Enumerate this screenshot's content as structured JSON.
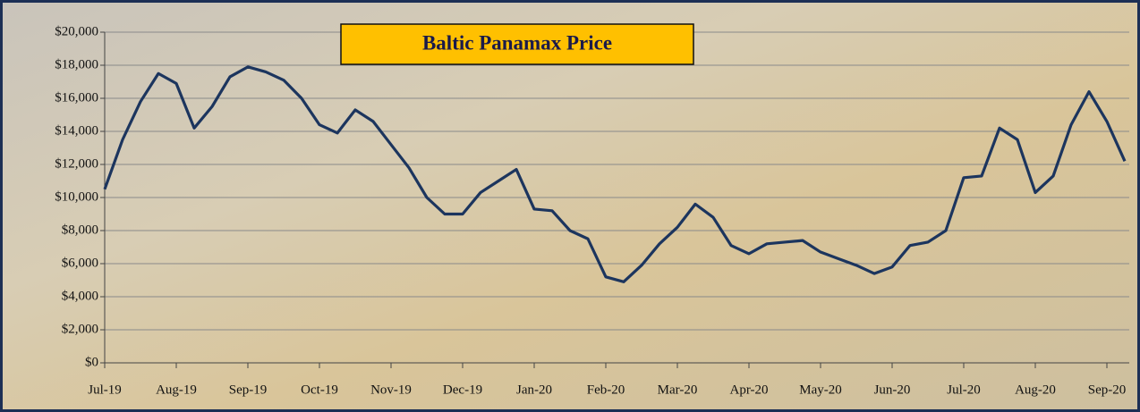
{
  "chart_data": {
    "type": "line",
    "title": "Baltic Panamax Price",
    "categories": [
      "Jul-19",
      null,
      null,
      null,
      "Aug-19",
      null,
      null,
      null,
      "Sep-19",
      null,
      null,
      null,
      "Oct-19",
      null,
      null,
      null,
      "Nov-19",
      null,
      null,
      null,
      "Dec-19",
      null,
      null,
      null,
      "Jan-20",
      null,
      null,
      null,
      "Feb-20",
      null,
      null,
      null,
      "Mar-20",
      null,
      null,
      null,
      "Apr-20",
      null,
      null,
      null,
      "May-20",
      null,
      null,
      null,
      "Jun-20",
      null,
      null,
      null,
      "Jul-20",
      null,
      null,
      null,
      "Aug-20",
      null,
      null,
      null,
      "Sep-20",
      null
    ],
    "series": [
      {
        "color": "#1c355e",
        "values": [
          10500,
          13500,
          15800,
          17500,
          16900,
          14200,
          15500,
          17300,
          17900,
          17600,
          17100,
          16000,
          14400,
          13900,
          15300,
          14600,
          13200,
          11800,
          10000,
          9000,
          9000,
          10300,
          11000,
          11700,
          9300,
          9200,
          8000,
          7500,
          5200,
          4900,
          5900,
          7200,
          8200,
          9600,
          8800,
          7100,
          6600,
          7200,
          7300,
          7400,
          6700,
          6300,
          5900,
          5400,
          5800,
          7100,
          7300,
          8000,
          11200,
          11300,
          14200,
          13500,
          10300,
          11300,
          14400,
          16400,
          14600,
          12200
        ]
      }
    ],
    "ylim": [
      0,
      20000
    ],
    "yticks": [
      {
        "value": 0,
        "label": "$0"
      },
      {
        "value": 2000,
        "label": "$2,000"
      },
      {
        "value": 4000,
        "label": "$4,000"
      },
      {
        "value": 6000,
        "label": "$6,000"
      },
      {
        "value": 8000,
        "label": "$8,000"
      },
      {
        "value": 10000,
        "label": "$10,000"
      },
      {
        "value": 12000,
        "label": "$12,000"
      },
      {
        "value": 14000,
        "label": "$14,000"
      },
      {
        "value": 16000,
        "label": "$16,000"
      },
      {
        "value": 18000,
        "label": "$18,000"
      },
      {
        "value": 20000,
        "label": "$20,000"
      }
    ],
    "grid": true
  }
}
